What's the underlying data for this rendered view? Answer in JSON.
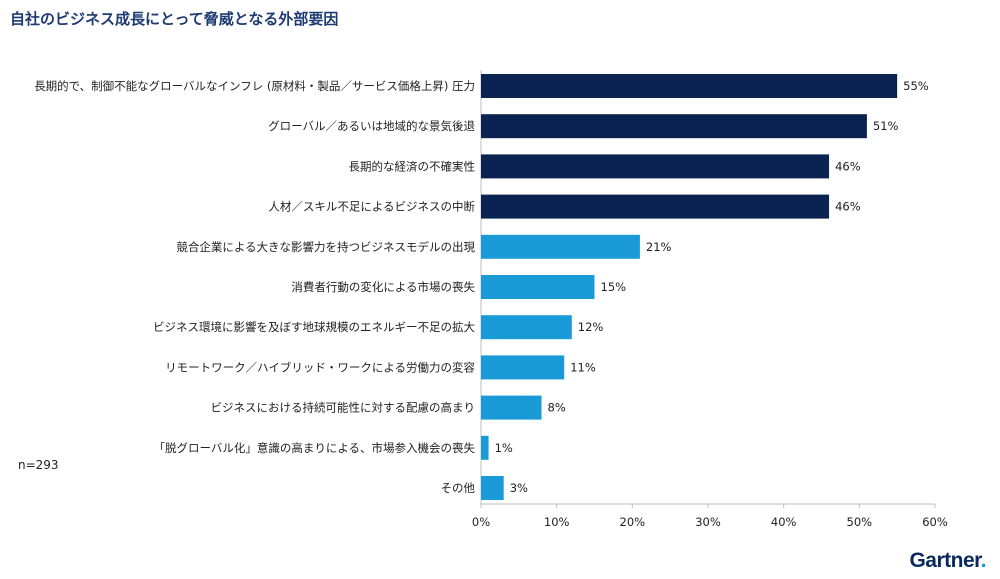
{
  "title": "自社のビジネス成長にとって脅威となる外部要因",
  "sample_note": "n=293",
  "brand": {
    "name": "Gartner",
    "dot": "."
  },
  "colors": {
    "dark": "#0b2350",
    "light": "#1a9bd7",
    "title": "#1f3b73"
  },
  "chart_data": {
    "type": "bar",
    "orientation": "horizontal",
    "title": "自社のビジネス成長にとって脅威となる外部要因",
    "categories": [
      "長期的で、制御不能なグローバルなインフレ (原材料・製品／サービス価格上昇) 圧力",
      "グローバル／あるいは地域的な景気後退",
      "長期的な経済の不確実性",
      "人材／スキル不足によるビジネスの中断",
      "競合企業による大きな影響力を持つビジネスモデルの出現",
      "消費者行動の変化による市場の喪失",
      "ビジネス環境に影響を及ぼす地球規模のエネルギー不足の拡大",
      "リモートワーク／ハイブリッド・ワークによる労働力の変容",
      "ビジネスにおける持続可能性に対する配慮の高まり",
      "「脱グローバル化」意識の高まりによる、市場参入機会の喪失",
      "その他"
    ],
    "values": [
      55,
      51,
      46,
      46,
      21,
      15,
      12,
      11,
      8,
      1,
      3
    ],
    "value_labels": [
      "55%",
      "51%",
      "46%",
      "46%",
      "21%",
      "15%",
      "12%",
      "11%",
      "8%",
      "1%",
      "3%"
    ],
    "highlight_top": 4,
    "xlim": [
      0,
      60
    ],
    "xticks": [
      0,
      10,
      20,
      30,
      40,
      50,
      60
    ],
    "xtick_labels": [
      "0%",
      "10%",
      "20%",
      "30%",
      "40%",
      "50%",
      "60%"
    ],
    "xlabel": "",
    "ylabel": "",
    "grid": false
  }
}
